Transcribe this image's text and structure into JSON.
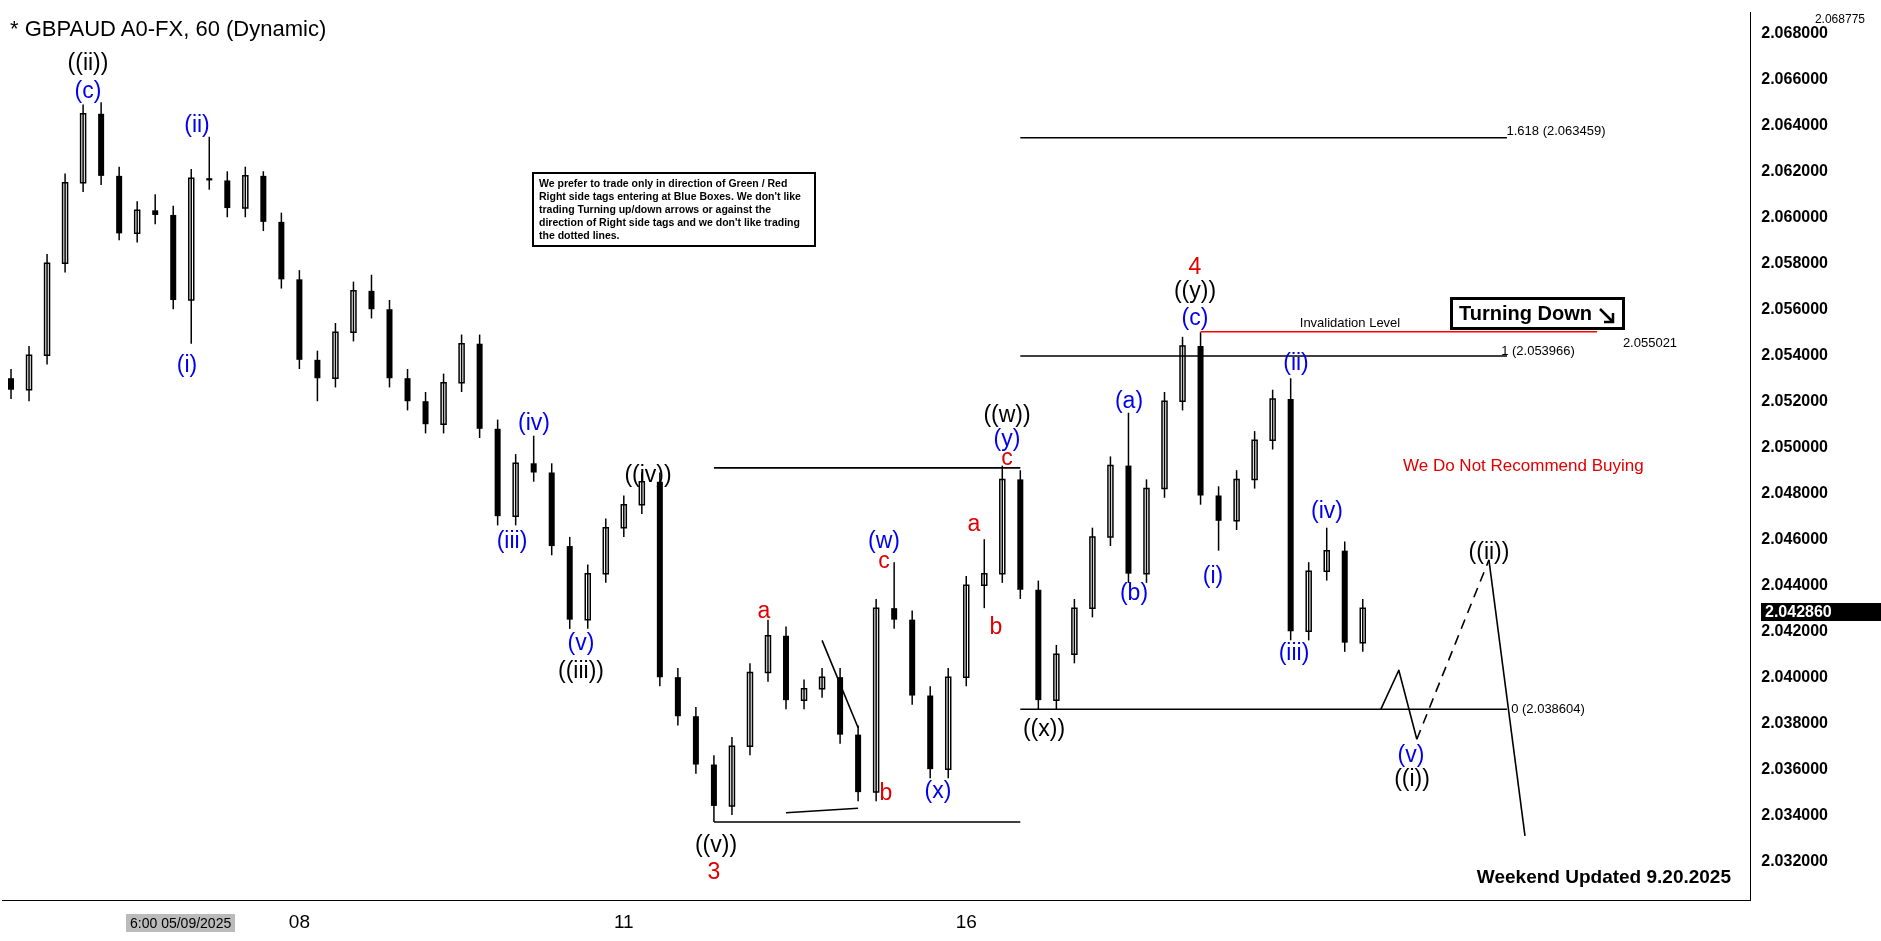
{
  "chart_data": {
    "type": "candlestick",
    "title": "* GBPAUD A0-FX, 60 (Dynamic)",
    "color": "#000000",
    "categories": [
      null,
      null,
      null,
      null,
      null,
      null,
      null,
      null,
      null,
      null,
      null,
      null,
      null,
      null,
      null,
      null,
      "08",
      null,
      null,
      null,
      null,
      null,
      null,
      null,
      null,
      null,
      null,
      null,
      null,
      null,
      null,
      null,
      null,
      null,
      "11",
      null,
      null,
      null,
      null,
      null,
      null,
      null,
      null,
      null,
      null,
      null,
      null,
      null,
      null,
      null,
      null,
      null,
      null,
      "16",
      null,
      null,
      null,
      null,
      null,
      null,
      null,
      null,
      null,
      null,
      null,
      null,
      null,
      null,
      null,
      null,
      null,
      null,
      null,
      null,
      null,
      null,
      null,
      null,
      null,
      null,
      null,
      null,
      null,
      null,
      null,
      null,
      null,
      null,
      null,
      null,
      null,
      null,
      null,
      null,
      null,
      null,
      null
    ],
    "ohlc": [
      [
        2.053,
        2.0534,
        2.0521,
        2.0525
      ],
      [
        2.0525,
        2.0544,
        2.052,
        2.054
      ],
      [
        2.054,
        2.0584,
        2.0536,
        2.058
      ],
      [
        2.058,
        2.0619,
        2.0576,
        2.0615
      ],
      [
        2.0615,
        2.0649,
        2.0611,
        2.0645
      ],
      [
        2.0645,
        2.065,
        2.0614,
        2.0618
      ],
      [
        2.0618,
        2.0622,
        2.059,
        2.0593
      ],
      [
        2.0593,
        2.0607,
        2.0589,
        2.0603
      ],
      [
        2.0603,
        2.061,
        2.0597,
        2.0601
      ],
      [
        2.0601,
        2.0605,
        2.056,
        2.0564
      ],
      [
        2.0564,
        2.0621,
        2.0545,
        2.0617
      ],
      [
        2.0617,
        2.0635,
        2.0612,
        2.0616
      ],
      [
        2.0616,
        2.062,
        2.06,
        2.0604
      ],
      [
        2.0604,
        2.0622,
        2.06,
        2.0618
      ],
      [
        2.0618,
        2.062,
        2.0594,
        2.0598
      ],
      [
        2.0598,
        2.0602,
        2.0569,
        2.0573
      ],
      [
        2.0573,
        2.0577,
        2.0534,
        2.0538
      ],
      [
        2.0538,
        2.0542,
        2.052,
        2.053
      ],
      [
        2.053,
        2.0554,
        2.0526,
        2.055
      ],
      [
        2.055,
        2.0572,
        2.0546,
        2.0568
      ],
      [
        2.0568,
        2.0575,
        2.0556,
        2.056
      ],
      [
        2.056,
        2.0564,
        2.0526,
        2.053
      ],
      [
        2.053,
        2.0534,
        2.0516,
        2.052
      ],
      [
        2.052,
        2.0524,
        2.0506,
        2.051
      ],
      [
        2.051,
        2.0532,
        2.0506,
        2.0528
      ],
      [
        2.0528,
        2.0549,
        2.0524,
        2.0545
      ],
      [
        2.0545,
        2.0549,
        2.0504,
        2.0508
      ],
      [
        2.0508,
        2.0512,
        2.0466,
        2.047
      ],
      [
        2.047,
        2.0497,
        2.0466,
        2.0493
      ],
      [
        2.0493,
        2.0505,
        2.0485,
        2.0489
      ],
      [
        2.0489,
        2.0493,
        2.0453,
        2.0457
      ],
      [
        2.0457,
        2.0461,
        2.0421,
        2.0425
      ],
      [
        2.0425,
        2.0449,
        2.0421,
        2.0445
      ],
      [
        2.0445,
        2.0469,
        2.0441,
        2.0465
      ],
      [
        2.0465,
        2.0479,
        2.0461,
        2.0475
      ],
      [
        2.0475,
        2.0489,
        2.0471,
        2.0485
      ],
      [
        2.0485,
        2.0489,
        2.0396,
        2.04
      ],
      [
        2.04,
        2.0404,
        2.0379,
        2.0383
      ],
      [
        2.0383,
        2.0387,
        2.0358,
        2.0362
      ],
      [
        2.0362,
        2.0366,
        2.0337,
        2.0344
      ],
      [
        2.0344,
        2.0374,
        2.034,
        2.037
      ],
      [
        2.037,
        2.0406,
        2.0366,
        2.0402
      ],
      [
        2.0402,
        2.0425,
        2.0398,
        2.0418
      ],
      [
        2.0418,
        2.0422,
        2.0386,
        2.039
      ],
      [
        2.039,
        2.0399,
        2.0386,
        2.0395
      ],
      [
        2.0395,
        2.0404,
        2.0391,
        2.04
      ],
      [
        2.04,
        2.0404,
        2.0371,
        2.0375
      ],
      [
        2.0375,
        2.0379,
        2.0346,
        2.035
      ],
      [
        2.035,
        2.0434,
        2.0346,
        2.043
      ],
      [
        2.043,
        2.045,
        2.0421,
        2.0425
      ],
      [
        2.0425,
        2.0429,
        2.0388,
        2.0392
      ],
      [
        2.0392,
        2.0396,
        2.0356,
        2.036
      ],
      [
        2.036,
        2.0404,
        2.0356,
        2.04
      ],
      [
        2.04,
        2.0444,
        2.0396,
        2.044
      ],
      [
        2.044,
        2.046,
        2.043,
        2.0445
      ],
      [
        2.0445,
        2.0492,
        2.0441,
        2.0486
      ],
      [
        2.0486,
        2.049,
        2.0434,
        2.0438
      ],
      [
        2.0438,
        2.0442,
        2.0386,
        2.039
      ],
      [
        2.039,
        2.0414,
        2.0386,
        2.041
      ],
      [
        2.041,
        2.0434,
        2.0406,
        2.043
      ],
      [
        2.043,
        2.0465,
        2.0426,
        2.0461
      ],
      [
        2.0461,
        2.0496,
        2.0457,
        2.0492
      ],
      [
        2.0492,
        2.0515,
        2.0441,
        2.0445
      ],
      [
        2.0445,
        2.0486,
        2.0441,
        2.0482
      ],
      [
        2.0482,
        2.0524,
        2.0478,
        2.052
      ],
      [
        2.052,
        2.0548,
        2.0516,
        2.0544
      ],
      [
        2.0544,
        2.055,
        2.0475,
        2.0479
      ],
      [
        2.0479,
        2.0483,
        2.0455,
        2.0468
      ],
      [
        2.0468,
        2.049,
        2.0464,
        2.0486
      ],
      [
        2.0486,
        2.0507,
        2.0482,
        2.0503
      ],
      [
        2.0503,
        2.0525,
        2.0499,
        2.0521
      ],
      [
        2.0521,
        2.053,
        2.0416,
        2.042
      ],
      [
        2.042,
        2.045,
        2.0416,
        2.0446
      ],
      [
        2.0446,
        2.0465,
        2.0442,
        2.0455
      ],
      [
        2.0455,
        2.0459,
        2.0411,
        2.0415
      ],
      [
        2.0415,
        2.0434,
        2.0411,
        2.043
      ],
      null,
      null,
      null,
      null,
      null,
      null,
      null,
      null,
      null,
      null,
      null,
      null,
      null,
      null,
      null,
      null,
      null,
      null,
      null,
      null,
      null
    ],
    "ylim": [
      2.0303,
      2.0689
    ],
    "yticks": [
      {
        "value": 2.032,
        "label": "2.032000"
      },
      {
        "value": 2.034,
        "label": "2.034000"
      },
      {
        "value": 2.036,
        "label": "2.036000"
      },
      {
        "value": 2.038,
        "label": "2.038000"
      },
      {
        "value": 2.04,
        "label": "2.040000"
      },
      {
        "value": 2.042,
        "label": "2.042000"
      },
      {
        "value": 2.044,
        "label": "2.044000"
      },
      {
        "value": 2.046,
        "label": "2.046000"
      },
      {
        "value": 2.048,
        "label": "2.048000"
      },
      {
        "value": 2.05,
        "label": "2.050000"
      },
      {
        "value": 2.052,
        "label": "2.052000"
      },
      {
        "value": 2.054,
        "label": "2.054000"
      },
      {
        "value": 2.056,
        "label": "2.056000"
      },
      {
        "value": 2.058,
        "label": "2.058000"
      },
      {
        "value": 2.06,
        "label": "2.060000"
      },
      {
        "value": 2.062,
        "label": "2.062000"
      },
      {
        "value": 2.064,
        "label": "2.064000"
      },
      {
        "value": 2.066,
        "label": "2.066000"
      },
      {
        "value": 2.068,
        "label": "2.068000"
      }
    ],
    "series": [
      {
        "type": "line",
        "color": "#000000",
        "line_style": "solid",
        "values": [
          null,
          null,
          null,
          null,
          null,
          null,
          null,
          null,
          null,
          null,
          null,
          null,
          null,
          null,
          null,
          null,
          null,
          null,
          null,
          null,
          null,
          null,
          null,
          null,
          null,
          null,
          null,
          null,
          null,
          null,
          null,
          null,
          null,
          null,
          null,
          null,
          null,
          null,
          null,
          null,
          null,
          null,
          null,
          null,
          null,
          null,
          null,
          null,
          null,
          null,
          null,
          null,
          null,
          null,
          null,
          null,
          2.063459,
          null,
          null,
          null,
          null,
          null,
          null,
          null,
          null,
          null,
          null,
          null,
          null,
          null,
          null,
          null,
          null,
          null,
          null,
          null,
          null,
          null,
          null,
          null,
          null,
          null,
          null,
          2.063459,
          null,
          null,
          null,
          null,
          null,
          null,
          null,
          null,
          null,
          null,
          null,
          null,
          null
        ]
      },
      {
        "type": "line",
        "color": "#000000",
        "line_style": "solid",
        "values": [
          null,
          null,
          null,
          null,
          null,
          null,
          null,
          null,
          null,
          null,
          null,
          null,
          null,
          null,
          null,
          null,
          null,
          null,
          null,
          null,
          null,
          null,
          null,
          null,
          null,
          null,
          null,
          null,
          null,
          null,
          null,
          null,
          null,
          null,
          null,
          null,
          null,
          null,
          null,
          null,
          null,
          null,
          null,
          null,
          null,
          null,
          null,
          null,
          null,
          null,
          null,
          null,
          null,
          null,
          null,
          null,
          2.053966,
          null,
          null,
          null,
          null,
          null,
          null,
          null,
          null,
          null,
          null,
          null,
          null,
          null,
          null,
          null,
          null,
          null,
          null,
          null,
          null,
          null,
          null,
          null,
          null,
          null,
          null,
          2.053966,
          null,
          null,
          null,
          null,
          null,
          null,
          null,
          null,
          null,
          null,
          null,
          null,
          null
        ]
      },
      {
        "type": "line",
        "color": "#000000",
        "line_style": "solid",
        "values": [
          null,
          null,
          null,
          null,
          null,
          null,
          null,
          null,
          null,
          null,
          null,
          null,
          null,
          null,
          null,
          null,
          null,
          null,
          null,
          null,
          null,
          null,
          null,
          null,
          null,
          null,
          null,
          null,
          null,
          null,
          null,
          null,
          null,
          null,
          null,
          null,
          null,
          null,
          null,
          null,
          null,
          null,
          null,
          null,
          null,
          null,
          null,
          null,
          null,
          null,
          null,
          null,
          null,
          null,
          null,
          null,
          2.038604,
          null,
          null,
          null,
          null,
          null,
          null,
          null,
          null,
          null,
          null,
          null,
          null,
          null,
          null,
          null,
          null,
          null,
          null,
          null,
          null,
          null,
          null,
          null,
          null,
          null,
          null,
          2.038604,
          null,
          null,
          null,
          null,
          null,
          null,
          null,
          null,
          null,
          null,
          null,
          null,
          null
        ]
      },
      {
        "type": "line",
        "color": "#ff0000",
        "line_style": "solid",
        "values": [
          null,
          null,
          null,
          null,
          null,
          null,
          null,
          null,
          null,
          null,
          null,
          null,
          null,
          null,
          null,
          null,
          null,
          null,
          null,
          null,
          null,
          null,
          null,
          null,
          null,
          null,
          null,
          null,
          null,
          null,
          null,
          null,
          null,
          null,
          null,
          null,
          null,
          null,
          null,
          null,
          null,
          null,
          null,
          null,
          null,
          null,
          null,
          null,
          null,
          null,
          null,
          null,
          null,
          null,
          null,
          null,
          null,
          null,
          null,
          null,
          null,
          null,
          null,
          null,
          null,
          null,
          2.055021,
          null,
          null,
          null,
          null,
          null,
          null,
          null,
          null,
          null,
          null,
          null,
          null,
          null,
          null,
          null,
          null,
          null,
          null,
          null,
          null,
          null,
          2.055021,
          null,
          null,
          null,
          null,
          null,
          null,
          null,
          null
        ]
      },
      {
        "type": "line",
        "color": "#000000",
        "line_style": "solid",
        "values": [
          null,
          null,
          null,
          null,
          null,
          null,
          null,
          null,
          null,
          null,
          null,
          null,
          null,
          null,
          null,
          null,
          null,
          null,
          null,
          null,
          null,
          null,
          null,
          null,
          null,
          null,
          null,
          null,
          null,
          null,
          null,
          null,
          null,
          null,
          null,
          null,
          null,
          null,
          null,
          2.0491,
          null,
          null,
          null,
          null,
          null,
          null,
          null,
          null,
          null,
          null,
          null,
          null,
          null,
          null,
          null,
          null,
          2.0491,
          null,
          null,
          null,
          null,
          null,
          null,
          null,
          null,
          null,
          null,
          null,
          null,
          null,
          null,
          null,
          null,
          null,
          null,
          null,
          null,
          null,
          null,
          null,
          null,
          null,
          null,
          null,
          null,
          null,
          null,
          null,
          null,
          null,
          null,
          null,
          null,
          null,
          null,
          null,
          null
        ]
      },
      {
        "type": "line",
        "color": "#000000",
        "line_style": "solid",
        "values": [
          null,
          null,
          null,
          null,
          null,
          null,
          null,
          null,
          null,
          null,
          null,
          null,
          null,
          null,
          null,
          null,
          null,
          null,
          null,
          null,
          null,
          null,
          null,
          null,
          null,
          null,
          null,
          null,
          null,
          null,
          null,
          null,
          null,
          null,
          null,
          null,
          null,
          null,
          null,
          2.0337,
          null,
          null,
          null,
          null,
          null,
          null,
          null,
          null,
          null,
          null,
          null,
          null,
          null,
          null,
          null,
          null,
          2.0337,
          null,
          null,
          null,
          null,
          null,
          null,
          null,
          null,
          null,
          null,
          null,
          null,
          null,
          null,
          null,
          null,
          null,
          null,
          null,
          null,
          null,
          null,
          null,
          null,
          null,
          null,
          null,
          null,
          null,
          null,
          null,
          null,
          null,
          null,
          null,
          null,
          null,
          null,
          null,
          null
        ]
      },
      {
        "type": "line",
        "color": "#000000",
        "line_style": "solid",
        "values": [
          null,
          null,
          null,
          null,
          null,
          null,
          null,
          null,
          null,
          null,
          null,
          null,
          null,
          null,
          null,
          null,
          null,
          null,
          null,
          null,
          null,
          null,
          null,
          null,
          null,
          null,
          null,
          null,
          null,
          null,
          null,
          null,
          null,
          null,
          null,
          null,
          null,
          null,
          null,
          null,
          null,
          null,
          null,
          null,
          null,
          2.0416,
          null,
          2.0378,
          null,
          null,
          null,
          null,
          null,
          null,
          null,
          null,
          null,
          null,
          null,
          null,
          null,
          null,
          null,
          null,
          null,
          null,
          null,
          null,
          null,
          null,
          null,
          null,
          null,
          null,
          null,
          null,
          null,
          null,
          null,
          null,
          null,
          null,
          null,
          null,
          null,
          null,
          null,
          null,
          null,
          null,
          null,
          null,
          null,
          null,
          null,
          null,
          null
        ]
      },
      {
        "type": "line",
        "color": "#000000",
        "line_style": "solid",
        "values": [
          null,
          null,
          null,
          null,
          null,
          null,
          null,
          null,
          null,
          null,
          null,
          null,
          null,
          null,
          null,
          null,
          null,
          null,
          null,
          null,
          null,
          null,
          null,
          null,
          null,
          null,
          null,
          null,
          null,
          null,
          null,
          null,
          null,
          null,
          null,
          null,
          null,
          null,
          null,
          null,
          null,
          null,
          null,
          2.0341,
          null,
          null,
          null,
          2.0343,
          null,
          null,
          null,
          null,
          null,
          null,
          null,
          null,
          null,
          null,
          null,
          null,
          null,
          null,
          null,
          null,
          null,
          null,
          null,
          null,
          null,
          null,
          null,
          null,
          null,
          null,
          null,
          null,
          null,
          null,
          null,
          null,
          null,
          null,
          null,
          null,
          null,
          null,
          null,
          null,
          null,
          null,
          null,
          null,
          null,
          null,
          null,
          null,
          null
        ]
      },
      {
        "type": "line",
        "color": "#000000",
        "line_style": "solid",
        "values": [
          null,
          null,
          null,
          null,
          null,
          null,
          null,
          null,
          null,
          null,
          null,
          null,
          null,
          null,
          null,
          null,
          null,
          null,
          null,
          null,
          null,
          null,
          null,
          null,
          null,
          null,
          null,
          null,
          null,
          null,
          null,
          null,
          null,
          null,
          null,
          null,
          null,
          null,
          null,
          null,
          null,
          null,
          null,
          null,
          null,
          null,
          null,
          null,
          null,
          null,
          null,
          null,
          null,
          null,
          null,
          null,
          null,
          null,
          null,
          null,
          null,
          null,
          null,
          null,
          null,
          null,
          null,
          null,
          null,
          null,
          null,
          null,
          null,
          null,
          null,
          null,
          2.0386,
          2.0403,
          2.0373,
          null,
          null,
          null,
          null,
          null,
          null,
          null,
          null,
          null,
          null,
          null,
          null,
          null,
          null,
          null,
          null,
          null,
          null
        ]
      },
      {
        "type": "line",
        "color": "#000000",
        "line_style": "dashed",
        "values": [
          null,
          null,
          null,
          null,
          null,
          null,
          null,
          null,
          null,
          null,
          null,
          null,
          null,
          null,
          null,
          null,
          null,
          null,
          null,
          null,
          null,
          null,
          null,
          null,
          null,
          null,
          null,
          null,
          null,
          null,
          null,
          null,
          null,
          null,
          null,
          null,
          null,
          null,
          null,
          null,
          null,
          null,
          null,
          null,
          null,
          null,
          null,
          null,
          null,
          null,
          null,
          null,
          null,
          null,
          null,
          null,
          null,
          null,
          null,
          null,
          null,
          null,
          null,
          null,
          null,
          null,
          null,
          null,
          null,
          null,
          null,
          null,
          null,
          null,
          null,
          null,
          null,
          null,
          2.0373,
          null,
          null,
          null,
          2.0451,
          null,
          null,
          null,
          null,
          null,
          null,
          null,
          null,
          null,
          null,
          null,
          null,
          null,
          null
        ]
      },
      {
        "type": "line",
        "color": "#000000",
        "line_style": "solid",
        "values": [
          null,
          null,
          null,
          null,
          null,
          null,
          null,
          null,
          null,
          null,
          null,
          null,
          null,
          null,
          null,
          null,
          null,
          null,
          null,
          null,
          null,
          null,
          null,
          null,
          null,
          null,
          null,
          null,
          null,
          null,
          null,
          null,
          null,
          null,
          null,
          null,
          null,
          null,
          null,
          null,
          null,
          null,
          null,
          null,
          null,
          null,
          null,
          null,
          null,
          null,
          null,
          null,
          null,
          null,
          null,
          null,
          null,
          null,
          null,
          null,
          null,
          null,
          null,
          null,
          null,
          null,
          null,
          null,
          null,
          null,
          null,
          null,
          null,
          null,
          null,
          null,
          null,
          null,
          null,
          null,
          null,
          null,
          2.0451,
          null,
          2.0331,
          null,
          null,
          null,
          null,
          null,
          null,
          null,
          null,
          null,
          null,
          null,
          null
        ]
      }
    ],
    "annotations": [
      "((ii))",
      "((iii))",
      "((iv))",
      "((v))",
      "((w))",
      "((x))",
      "((y))",
      "((i))",
      "((ii))",
      "(c)",
      "(ii)",
      "(i)",
      "(iv)",
      "(iii)",
      "(v)",
      "(w)",
      "(x)",
      "(y)",
      "(a)",
      "(b)",
      "(c)",
      "(ii)",
      "(i)",
      "(iv)",
      "(iii)",
      "(v)",
      "4",
      "3",
      "a",
      "b",
      "c",
      "a",
      "b",
      "c",
      "1.618 (2.063459)",
      "1 (2.053966)",
      "0 (2.038604)",
      "Invalidation Level",
      "2.055021",
      "We prefer to trade only in direction of Green / Red Right side tags entering at Blue Boxes. We don't like trading Turning up/down arrows or against the direction of Right side tags and we don't like trading the dotted lines.",
      "We Do Not Recommend Buying",
      "Turning Down",
      "Weekend Updated 9.20.2025",
      "6:00 05/09/2025",
      "2.042860",
      "2.068775"
    ]
  }
}
